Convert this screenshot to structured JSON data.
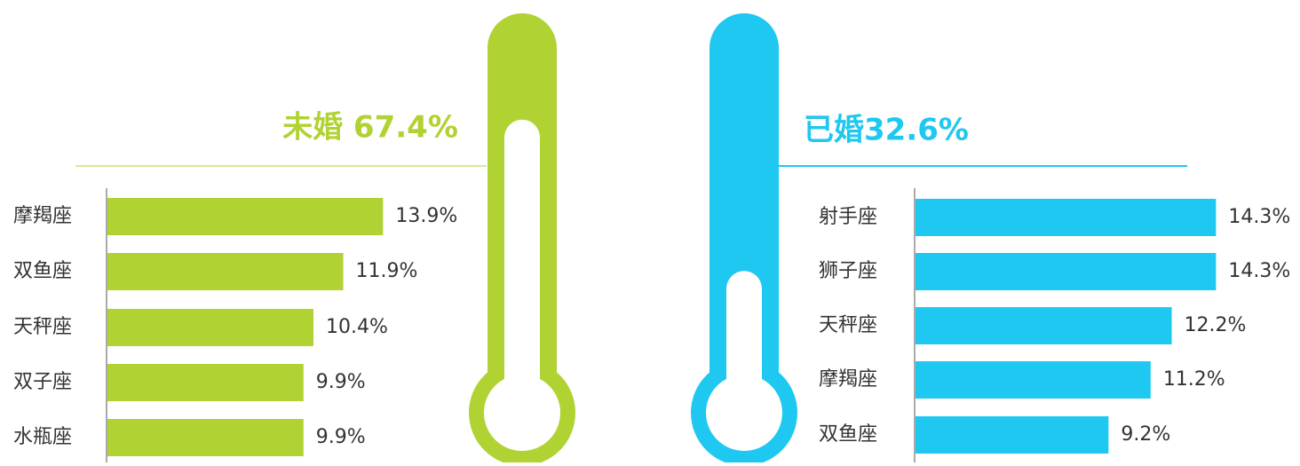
{
  "chart_data": [
    {
      "type": "bar",
      "orientation": "horizontal",
      "title": "未婚 67.4%",
      "value": 67.4,
      "color": "#b0d233",
      "categories": [
        "摩羯座",
        "双鱼座",
        "天秤座",
        "双子座",
        "水瓶座"
      ],
      "values": [
        13.9,
        11.9,
        10.4,
        9.9,
        9.9
      ],
      "value_labels": [
        "13.9%",
        "11.9%",
        "10.4%",
        "9.9%",
        "9.9%"
      ],
      "xlim": [
        0,
        15
      ]
    },
    {
      "type": "bar",
      "orientation": "horizontal",
      "title": "已婚32.6%",
      "value": 32.6,
      "color": "#1ec8f0",
      "categories": [
        "射手座",
        "狮子座",
        "天秤座",
        "摩羯座",
        "双鱼座"
      ],
      "values": [
        14.3,
        14.3,
        12.2,
        11.2,
        9.2
      ],
      "value_labels": [
        "14.3%",
        "14.3%",
        "12.2%",
        "11.2%",
        "9.2%"
      ],
      "xlim": [
        0,
        15
      ]
    }
  ]
}
